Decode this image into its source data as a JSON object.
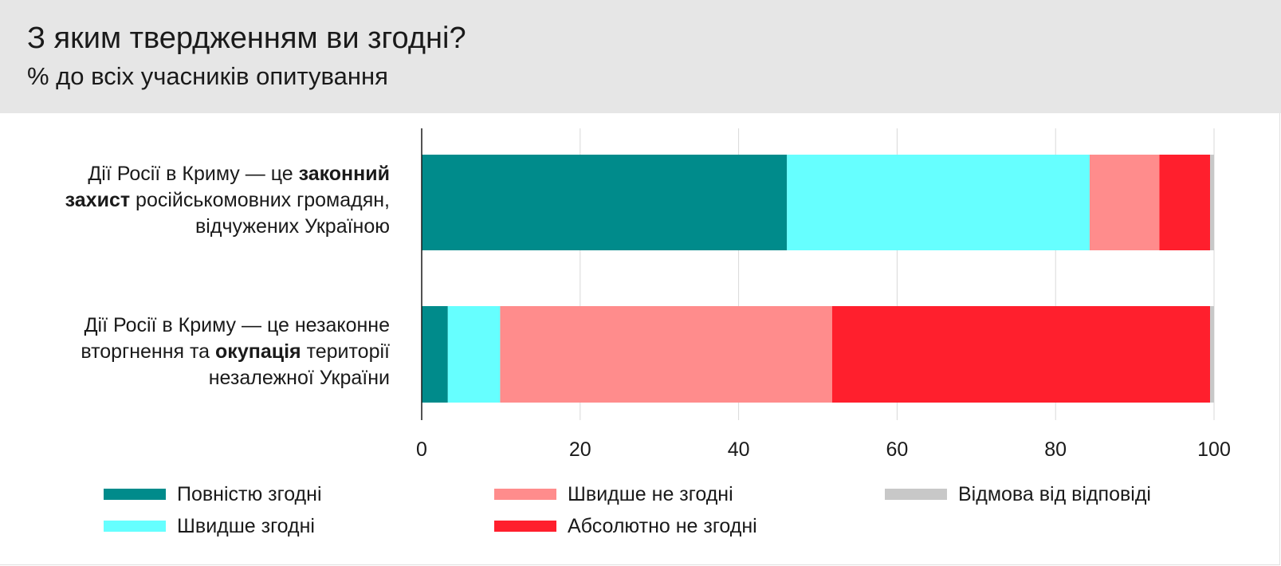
{
  "header": {
    "title": "З яким твердженням ви згодні?",
    "subtitle": "% до всіх учасників опитування"
  },
  "chart_data": {
    "type": "bar",
    "orientation": "horizontal",
    "stacked": true,
    "categories": [
      [
        [
          "Дії Росії в Криму — це ",
          false
        ],
        [
          "законний",
          true
        ],
        [
          "\n",
          false
        ],
        [
          "захист",
          true
        ],
        [
          " російськомовних громадян,",
          false
        ],
        [
          "\n",
          false
        ],
        [
          "відчужених Україною",
          false
        ]
      ],
      [
        [
          "Дії Росії в Криму — це незаконне",
          false
        ],
        [
          "\n",
          false
        ],
        [
          "вторгнення та ",
          false
        ],
        [
          "окупація",
          true
        ],
        [
          " території",
          false
        ],
        [
          "\n",
          false
        ],
        [
          "незалежної України",
          false
        ]
      ]
    ],
    "series": [
      {
        "name": "Повністю згодні",
        "color": "#008b8b",
        "values": [
          46.1,
          3.3
        ]
      },
      {
        "name": "Швидше згодні",
        "color": "#66ffff",
        "values": [
          38.2,
          6.6
        ]
      },
      {
        "name": "Швидше не згодні",
        "color": "#ff8c8c",
        "values": [
          8.8,
          41.9
        ]
      },
      {
        "name": "Абсолютно не згодні",
        "color": "#ff1f2d",
        "values": [
          6.4,
          47.7
        ]
      },
      {
        "name": "Відмова від відповіді",
        "color": "#c8c8c8",
        "values": [
          0.5,
          0.5
        ]
      }
    ],
    "xlim": [
      0,
      100
    ],
    "xticks": [
      "0",
      "20",
      "40",
      "60",
      "80",
      "100"
    ],
    "grid": true,
    "legend_position": "bottom"
  }
}
